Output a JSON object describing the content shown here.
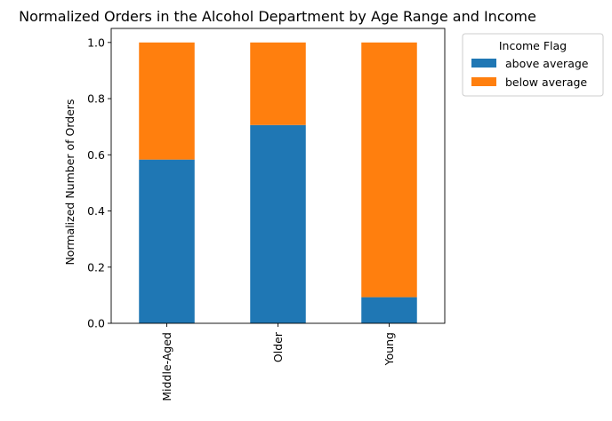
{
  "chart_data": {
    "type": "bar",
    "stacked": true,
    "title": "Normalized Orders in the Alcohol Department by Age Range and Income",
    "xlabel": "",
    "ylabel": "Normalized Number of Orders",
    "categories": [
      "Middle-Aged",
      "Older",
      "Young"
    ],
    "series": [
      {
        "name": "above average",
        "values": [
          0.583,
          0.706,
          0.093
        ],
        "color": "#1f77b4"
      },
      {
        "name": "below average",
        "values": [
          0.417,
          0.294,
          0.907
        ],
        "color": "#ff7f0e"
      }
    ],
    "ylim": [
      0,
      1.05
    ],
    "yticks": [
      0.0,
      0.2,
      0.4,
      0.6,
      0.8,
      1.0
    ],
    "ytick_labels": [
      "0.0",
      "0.2",
      "0.4",
      "0.6",
      "0.8",
      "1.0"
    ],
    "legend": {
      "title": "Income Flag",
      "placement": "outside-upper-right"
    },
    "grid": false
  }
}
